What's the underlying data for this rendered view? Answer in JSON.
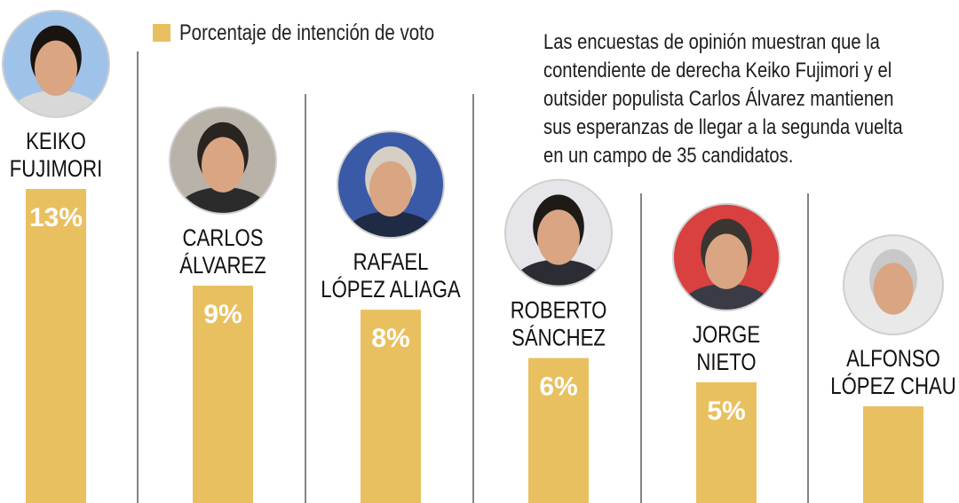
{
  "legend": {
    "label": "Porcentaje de intención de voto",
    "color": "#e9c060"
  },
  "note": {
    "lines": [
      "Las encuestas de opinión muestran que la",
      "contendiente de derecha Keiko Fujimori y el",
      "outsider populista Carlos Álvarez mantienen",
      "sus esperanzas de llegar a la segunda vuelta",
      "en un campo de 35 candidatos."
    ]
  },
  "chart_data": {
    "type": "bar",
    "categories": [
      "KEIKO FUJIMORI",
      "CARLOS ÁLVAREZ",
      "RAFAEL LÓPEZ ALIAGA",
      "ROBERTO SÁNCHEZ",
      "JORGE NIETO",
      "ALFONSO LÓPEZ CHAU"
    ],
    "name_lines": [
      [
        "KEIKO",
        "FUJIMORI"
      ],
      [
        "CARLOS",
        "ÁLVAREZ"
      ],
      [
        "RAFAEL",
        "LÓPEZ ALIAGA"
      ],
      [
        "ROBERTO",
        "SÁNCHEZ"
      ],
      [
        "JORGE",
        "NIETO"
      ],
      [
        "ALFONSO",
        "LÓPEZ CHAU"
      ]
    ],
    "values": [
      13,
      9,
      8,
      6,
      5,
      4
    ],
    "value_labels": [
      "13%",
      "9%",
      "8%",
      "6%",
      "5%",
      ""
    ],
    "unit": "%",
    "title": "",
    "xlabel": "",
    "ylabel": "",
    "bar_color": "#e9c060",
    "legend_position": "top-left",
    "grid": false
  }
}
